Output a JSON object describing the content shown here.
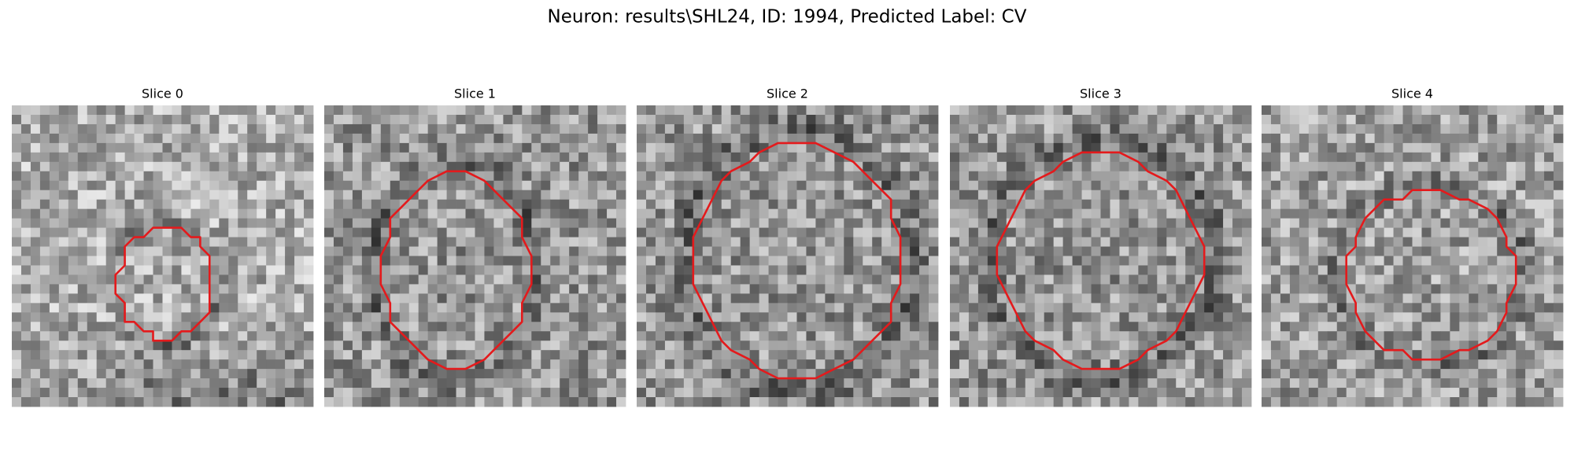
{
  "title": "Neuron: results\\SHL24, ID: 1994, Predicted Label: CV",
  "panels": [
    {
      "title": "Slice 0"
    },
    {
      "title": "Slice 1"
    },
    {
      "title": "Slice 2"
    },
    {
      "title": "Slice 3"
    },
    {
      "title": "Slice 4"
    }
  ]
}
